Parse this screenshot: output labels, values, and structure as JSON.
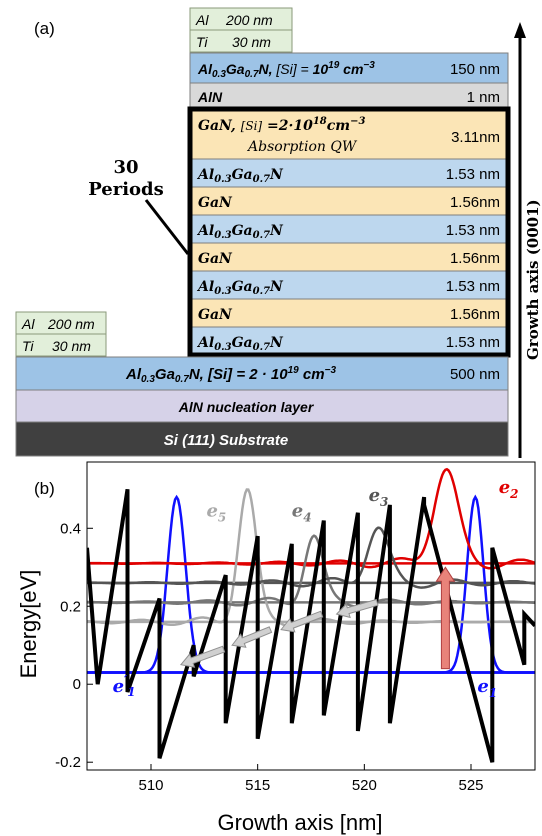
{
  "panel_a": {
    "label": "(a)",
    "periods_label_line1": "30",
    "periods_label_line2": "Periods",
    "growth_axis_label": "Growth axis (0001)",
    "top_contact": {
      "metal1": "Al",
      "metal1_thk": "200 nm",
      "metal2": "Ti",
      "metal2_thk": "30 nm"
    },
    "left_contact": {
      "metal1": "Al",
      "metal1_thk": "200 nm",
      "metal2": "Ti",
      "metal2_thk": "30 nm"
    },
    "layers": [
      {
        "name": "Al0.3Ga0.7N, [Si] = 10^19 cm^-3",
        "thickness": "150 nm",
        "color": "#9dc3e6"
      },
      {
        "name": "AlN",
        "thickness": "1 nm",
        "color": "#d9d9d9"
      },
      {
        "name": "GaN, [Si] = 2·10^18 cm^-3",
        "sub": "Absorption QW",
        "thickness": "3.11nm",
        "color": "#fbe5b6"
      },
      {
        "name": "Al0.3Ga0.7N",
        "thickness": "1.53 nm",
        "color": "#bdd7ee"
      },
      {
        "name": "GaN",
        "thickness": "1.56nm",
        "color": "#fbe5b6"
      },
      {
        "name": "Al0.3Ga0.7N",
        "thickness": "1.53 nm",
        "color": "#bdd7ee"
      },
      {
        "name": "GaN",
        "thickness": "1.56nm",
        "color": "#fbe5b6"
      },
      {
        "name": "Al0.3Ga0.7N",
        "thickness": "1.53 nm",
        "color": "#bdd7ee"
      },
      {
        "name": "GaN",
        "thickness": "1.56nm",
        "color": "#fbe5b6"
      },
      {
        "name": "Al0.3Ga0.7N",
        "thickness": "1.53 nm",
        "color": "#bdd7ee"
      },
      {
        "name": "Al0.3Ga0.7N, [Si] = 2 · 10^19 cm^-3",
        "thickness": "500 nm",
        "color": "#9dc3e6"
      },
      {
        "name": "AlN nucleation layer",
        "thickness": "",
        "color": "#d6d2e8"
      },
      {
        "name": "Si (111) Substrate",
        "thickness": "",
        "color": "#404040"
      }
    ]
  },
  "panel_b": {
    "label": "(b)",
    "xlabel": "Growth axis [nm]",
    "ylabel": "Energy[eV]",
    "xticks": [
      "510",
      "515",
      "520",
      "525"
    ],
    "yticks": [
      "0.4",
      "0.2",
      "0",
      "-0.2"
    ],
    "state_labels": {
      "e1": "e1",
      "e1p": "e'1",
      "e2": "e2",
      "e3": "e3",
      "e4": "e4",
      "e5": "e5"
    }
  },
  "chart_data": {
    "type": "line",
    "xlim": [
      507,
      528
    ],
    "ylim": [
      -0.22,
      0.57
    ],
    "xlabel": "Growth axis [nm]",
    "ylabel": "Energy[eV]",
    "conduction_band": {
      "x": [
        507,
        507.5,
        508.9,
        508.9,
        510.4,
        510.4,
        512.0,
        512.0,
        513.5,
        513.5,
        515.0,
        515.0,
        516.6,
        516.6,
        518.1,
        518.1,
        519.7,
        519.7,
        521.2,
        521.2,
        522.8,
        522.8,
        526.0,
        526.0,
        527.5,
        527.5,
        528
      ],
      "y": [
        0.35,
        0.0,
        0.5,
        -0.02,
        0.22,
        -0.19,
        0.1,
        0.02,
        0.28,
        -0.1,
        0.38,
        -0.14,
        0.36,
        -0.1,
        0.42,
        -0.08,
        0.44,
        -0.12,
        0.46,
        -0.1,
        0.48,
        0.46,
        -0.2,
        0.35,
        0.05,
        0.18,
        0.15
      ]
    },
    "levels": [
      {
        "name": "e1",
        "energy": 0.03,
        "color": "#1010ff"
      },
      {
        "name": "e'1",
        "energy": 0.03,
        "color": "#1010ff"
      },
      {
        "name": "e2",
        "energy": 0.31,
        "color": "#e00000"
      },
      {
        "name": "e3",
        "energy": 0.26,
        "color": "#555555"
      },
      {
        "name": "e4",
        "energy": 0.21,
        "color": "#777777"
      },
      {
        "name": "e5",
        "energy": 0.16,
        "color": "#aaaaaa"
      }
    ],
    "wavefunctions": [
      {
        "name": "e1",
        "center": 525.2,
        "peak": 0.48,
        "base": 0.03,
        "width": 0.55,
        "color": "#1010ff"
      },
      {
        "name": "e'1",
        "center": 511.2,
        "peak": 0.48,
        "base": 0.03,
        "width": 0.6,
        "color": "#1010ff"
      },
      {
        "name": "e2",
        "center": 523.8,
        "peak": 0.55,
        "base": 0.31,
        "width": 0.8,
        "color": "#e00000"
      },
      {
        "name": "e5",
        "center": 514.5,
        "peak": 0.5,
        "base": 0.16,
        "width": 0.6,
        "color": "#aaaaaa"
      },
      {
        "name": "e4",
        "center": 517.6,
        "peak": 0.38,
        "base": 0.21,
        "width": 0.6,
        "color": "#777777"
      },
      {
        "name": "e3",
        "center": 520.6,
        "peak": 0.4,
        "base": 0.26,
        "width": 0.7,
        "color": "#555555"
      }
    ]
  }
}
